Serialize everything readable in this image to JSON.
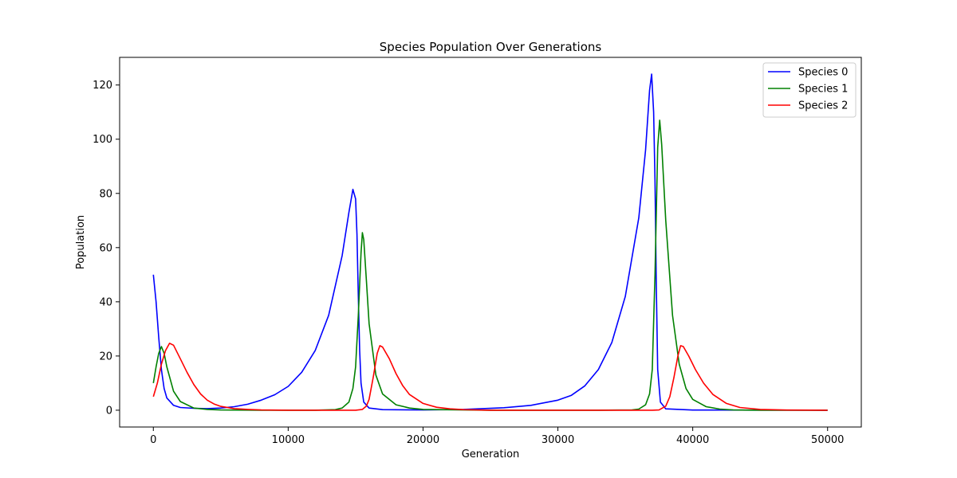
{
  "chart_data": {
    "type": "line",
    "title": "Species Population Over Generations",
    "xlabel": "Generation",
    "ylabel": "Population",
    "xlim": [
      -2500,
      52500
    ],
    "ylim": [
      -6.2,
      130.2
    ],
    "xticks": [
      0,
      10000,
      20000,
      30000,
      40000,
      50000
    ],
    "yticks": [
      0,
      20,
      40,
      60,
      80,
      100,
      120
    ],
    "grid": false,
    "legend_position": "top-right",
    "series": [
      {
        "name": "Species 0",
        "color": "#0000ff",
        "points": [
          [
            0,
            50
          ],
          [
            200,
            40
          ],
          [
            400,
            27
          ],
          [
            600,
            15
          ],
          [
            800,
            8
          ],
          [
            1000,
            4.5
          ],
          [
            1500,
            1.8
          ],
          [
            2000,
            1.0
          ],
          [
            3000,
            0.7
          ],
          [
            4000,
            0.6
          ],
          [
            5000,
            0.8
          ],
          [
            6000,
            1.3
          ],
          [
            7000,
            2.2
          ],
          [
            8000,
            3.7
          ],
          [
            9000,
            5.7
          ],
          [
            10000,
            8.8
          ],
          [
            11000,
            14
          ],
          [
            12000,
            22
          ],
          [
            13000,
            35
          ],
          [
            14000,
            57
          ],
          [
            14500,
            73
          ],
          [
            14800,
            81.5
          ],
          [
            15000,
            78
          ],
          [
            15100,
            65
          ],
          [
            15200,
            42
          ],
          [
            15300,
            22
          ],
          [
            15400,
            10
          ],
          [
            15600,
            3
          ],
          [
            16000,
            0.8
          ],
          [
            17000,
            0.2
          ],
          [
            20000,
            0.1
          ],
          [
            23000,
            0.3
          ],
          [
            26000,
            0.9
          ],
          [
            28000,
            1.8
          ],
          [
            30000,
            3.7
          ],
          [
            31000,
            5.5
          ],
          [
            32000,
            9
          ],
          [
            33000,
            15
          ],
          [
            34000,
            25
          ],
          [
            35000,
            42
          ],
          [
            36000,
            71
          ],
          [
            36500,
            96
          ],
          [
            36800,
            118
          ],
          [
            36950,
            124
          ],
          [
            37100,
            110
          ],
          [
            37200,
            85
          ],
          [
            37300,
            45
          ],
          [
            37400,
            15
          ],
          [
            37600,
            3
          ],
          [
            38000,
            0.5
          ],
          [
            40000,
            0.05
          ],
          [
            50000,
            0
          ]
        ]
      },
      {
        "name": "Species 1",
        "color": "#008000",
        "points": [
          [
            0,
            10
          ],
          [
            200,
            16
          ],
          [
            400,
            21
          ],
          [
            600,
            23.5
          ],
          [
            800,
            21
          ],
          [
            1000,
            16
          ],
          [
            1500,
            7
          ],
          [
            2000,
            3.2
          ],
          [
            3000,
            0.8
          ],
          [
            4000,
            0.3
          ],
          [
            5000,
            0.1
          ],
          [
            8000,
            0
          ],
          [
            12000,
            0
          ],
          [
            13500,
            0.2
          ],
          [
            14000,
            0.8
          ],
          [
            14500,
            3
          ],
          [
            14800,
            8
          ],
          [
            15000,
            16
          ],
          [
            15200,
            35
          ],
          [
            15400,
            58
          ],
          [
            15500,
            65.5
          ],
          [
            15600,
            63
          ],
          [
            15800,
            48
          ],
          [
            16000,
            32
          ],
          [
            16500,
            13
          ],
          [
            17000,
            6
          ],
          [
            18000,
            2
          ],
          [
            19000,
            0.8
          ],
          [
            20000,
            0.3
          ],
          [
            25000,
            0
          ],
          [
            33000,
            0
          ],
          [
            35500,
            0.1
          ],
          [
            36000,
            0.4
          ],
          [
            36500,
            2
          ],
          [
            36800,
            6
          ],
          [
            37000,
            15
          ],
          [
            37200,
            50
          ],
          [
            37400,
            97
          ],
          [
            37550,
            107
          ],
          [
            37700,
            98
          ],
          [
            38000,
            70
          ],
          [
            38500,
            35
          ],
          [
            39000,
            17
          ],
          [
            39500,
            8
          ],
          [
            40000,
            4
          ],
          [
            41000,
            1.3
          ],
          [
            42000,
            0.4
          ],
          [
            43000,
            0.1
          ],
          [
            45000,
            0
          ],
          [
            50000,
            0
          ]
        ]
      },
      {
        "name": "Species 2",
        "color": "#ff0000",
        "points": [
          [
            0,
            5
          ],
          [
            300,
            10
          ],
          [
            600,
            17
          ],
          [
            900,
            22
          ],
          [
            1200,
            24.7
          ],
          [
            1500,
            24
          ],
          [
            2000,
            19
          ],
          [
            2500,
            14
          ],
          [
            3000,
            9.5
          ],
          [
            3500,
            6
          ],
          [
            4000,
            3.7
          ],
          [
            4500,
            2.3
          ],
          [
            5000,
            1.4
          ],
          [
            6000,
            0.6
          ],
          [
            7000,
            0.3
          ],
          [
            8000,
            0.1
          ],
          [
            10000,
            0
          ],
          [
            15000,
            0
          ],
          [
            15500,
            0.3
          ],
          [
            15800,
            1.5
          ],
          [
            16000,
            4
          ],
          [
            16300,
            12
          ],
          [
            16600,
            21
          ],
          [
            16800,
            23.8
          ],
          [
            17000,
            23.3
          ],
          [
            17500,
            19
          ],
          [
            18000,
            13.5
          ],
          [
            18500,
            9
          ],
          [
            19000,
            5.8
          ],
          [
            20000,
            2.5
          ],
          [
            21000,
            1.1
          ],
          [
            22000,
            0.5
          ],
          [
            23000,
            0.2
          ],
          [
            25000,
            0
          ],
          [
            37000,
            0
          ],
          [
            37500,
            0.1
          ],
          [
            38000,
            1.5
          ],
          [
            38300,
            5
          ],
          [
            38600,
            12
          ],
          [
            38900,
            20
          ],
          [
            39100,
            23.8
          ],
          [
            39300,
            23.5
          ],
          [
            39700,
            20
          ],
          [
            40200,
            15
          ],
          [
            40800,
            10
          ],
          [
            41500,
            5.8
          ],
          [
            42500,
            2.5
          ],
          [
            43500,
            1
          ],
          [
            45000,
            0.3
          ],
          [
            47000,
            0.05
          ],
          [
            50000,
            0
          ]
        ]
      }
    ]
  }
}
